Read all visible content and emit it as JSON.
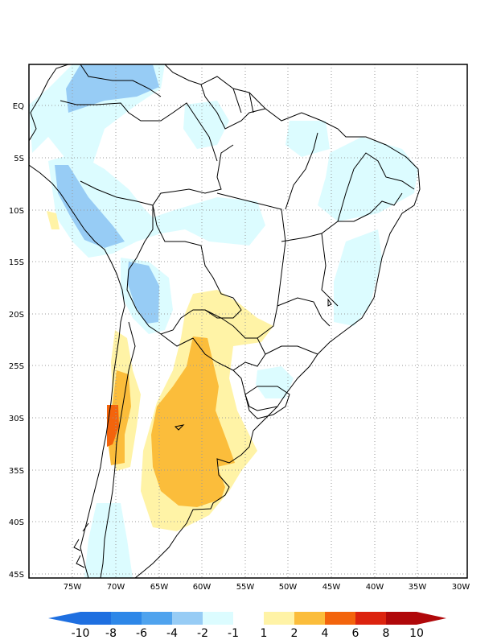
{
  "map": {
    "region": "South America",
    "lat_labels": [
      "EQ",
      "5S",
      "10S",
      "15S",
      "20S",
      "25S",
      "30S",
      "35S",
      "40S",
      "45S"
    ],
    "lon_labels": [
      "75W",
      "70W",
      "65W",
      "60W",
      "55W",
      "50W",
      "45W",
      "40W",
      "35W",
      "30W"
    ],
    "gridlines": "dotted"
  },
  "colorbar": {
    "labels": [
      "-10",
      "-8",
      "-6",
      "-4",
      "-2",
      "-1",
      "1",
      "2",
      "4",
      "6",
      "8",
      "10"
    ],
    "negative_colors": [
      "#1e6fe0",
      "#2d87e8",
      "#4fa3ee",
      "#97ccf5",
      "#dcfcff"
    ],
    "positive_colors": [
      "#fff3a6",
      "#fbbd3b",
      "#f3640c",
      "#dc230e",
      "#b0080a"
    ],
    "neg_arrow_color": "#1e6fe0",
    "pos_arrow_color": "#b0080a",
    "zero_color": "#ffffff"
  },
  "palette": {
    "c_neg1": "#dcfcff",
    "c_neg2": "#97ccf5",
    "c_pos1": "#fff3a6",
    "c_pos2": "#fbbd3b",
    "c_pos3": "#f3640c"
  }
}
